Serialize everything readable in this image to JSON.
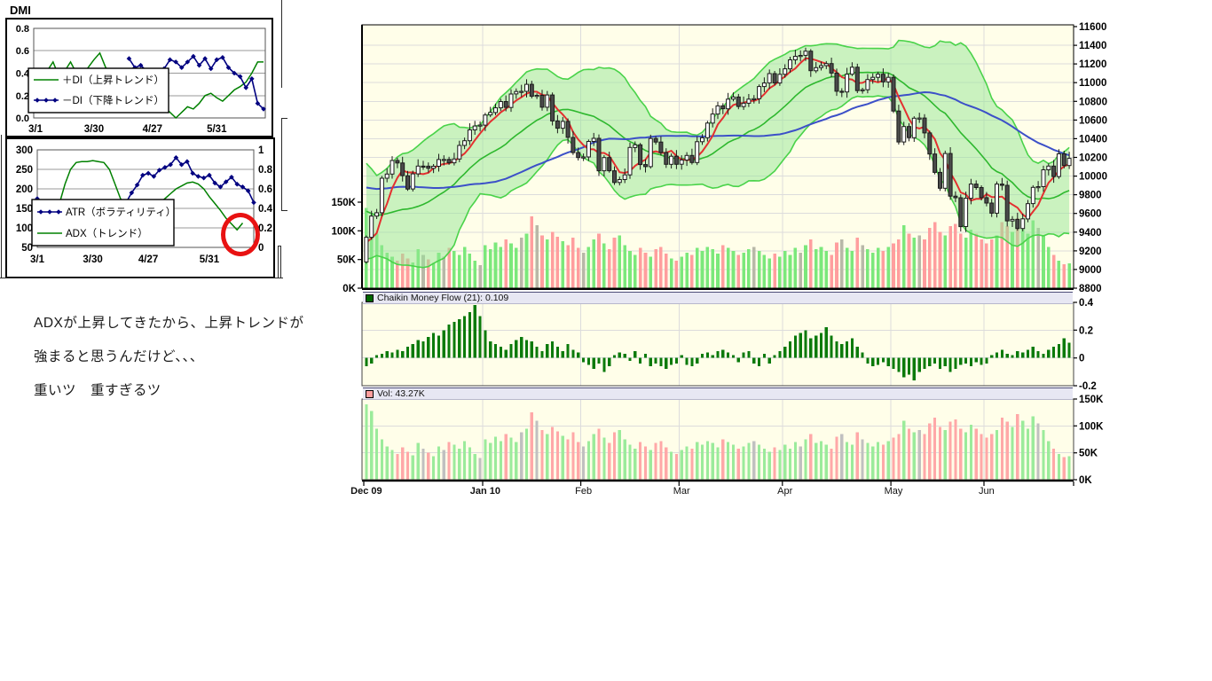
{
  "annotation": {
    "line1": "ADXが上昇してきたから、上昇トレンドが",
    "line2": "強まると思うんだけど、、、",
    "line3": "重いツ　重すぎるツ"
  },
  "dmi_panel": {
    "title": "DMI",
    "red_circle_color": "#e81212"
  },
  "chart_data": [
    {
      "id": "dmi",
      "type": "line",
      "ylim": [
        0,
        0.8
      ],
      "yticks": [
        "0.0",
        "0.2",
        "0.4",
        "0.6",
        "0.8"
      ],
      "x_tick_labels": [
        "3/1",
        "3/30",
        "4/27",
        "5/31"
      ],
      "x_tick_pos": [
        0,
        10,
        20,
        31
      ],
      "legend": [
        {
          "label": "＋DI（上昇トレンド）",
          "color": "#008000",
          "marker": "none"
        },
        {
          "label": "－DI（下降トレンド）",
          "color": "#000080",
          "marker": "diamond"
        }
      ],
      "series": [
        {
          "name": "+DI",
          "color": "#008000",
          "values": [
            null,
            0.28,
            0.42,
            0.5,
            0.37,
            0.42,
            0.5,
            0.4,
            0.38,
            0.45,
            0.52,
            0.58,
            0.45,
            0.4,
            0.33,
            0.27,
            0.25,
            0.27,
            0.2,
            0.17,
            0.15,
            0.16,
            0.1,
            0.05,
            0.0,
            0.05,
            0.1,
            0.08,
            0.13,
            0.2,
            0.22,
            0.18,
            0.15,
            0.2,
            0.25,
            0.28,
            0.32,
            0.4,
            0.5,
            0.5
          ]
        },
        {
          "name": "-DI",
          "color": "#000080",
          "marker": "diamond",
          "values": [
            null,
            null,
            null,
            null,
            null,
            null,
            null,
            null,
            null,
            null,
            null,
            null,
            null,
            null,
            null,
            null,
            0.53,
            0.45,
            0.47,
            0.42,
            0.4,
            0.38,
            0.44,
            0.52,
            0.5,
            0.45,
            0.5,
            0.55,
            0.47,
            0.53,
            0.44,
            0.52,
            0.54,
            0.45,
            0.4,
            0.37,
            0.27,
            0.35,
            0.13,
            0.08
          ]
        }
      ]
    },
    {
      "id": "atr_adx",
      "type": "line",
      "left_ylim": [
        50,
        300
      ],
      "left_yticks": [
        "300",
        "250",
        "200",
        "150",
        "100",
        "50"
      ],
      "right_ylim": [
        0,
        1
      ],
      "right_yticks": [
        "1",
        "0.8",
        "0.6",
        "0.4",
        "0.2",
        "0"
      ],
      "x_tick_labels": [
        "3/1",
        "3/30",
        "4/27",
        "5/31"
      ],
      "x_tick_pos": [
        0,
        10,
        20,
        31
      ],
      "legend": [
        {
          "label": "ATR（ボラティリティ）",
          "color": "#000080",
          "marker": "diamond"
        },
        {
          "label": "ADX（トレンド）",
          "color": "#008000",
          "marker": "none"
        }
      ],
      "series": [
        {
          "name": "ATR",
          "axis": "left",
          "color": "#000080",
          "marker": "diamond",
          "values": [
            175,
            160,
            165,
            160,
            158,
            160,
            162,
            158,
            160,
            163,
            160,
            158,
            160,
            165,
            162,
            160,
            165,
            190,
            210,
            235,
            240,
            232,
            248,
            255,
            262,
            280,
            262,
            270,
            240,
            232,
            228,
            235,
            215,
            205,
            218,
            230,
            212,
            205,
            195,
            165
          ]
        },
        {
          "name": "ADX",
          "axis": "right",
          "color": "#008000",
          "values": [
            0.22,
            0.2,
            0.18,
            0.25,
            0.45,
            0.65,
            0.8,
            0.87,
            0.88,
            0.88,
            0.89,
            0.88,
            0.87,
            0.8,
            0.65,
            0.5,
            0.43,
            0.42,
            0.44,
            0.43,
            0.42,
            0.43,
            0.45,
            0.5,
            0.55,
            0.6,
            0.63,
            0.66,
            0.67,
            0.65,
            0.6,
            0.52,
            0.45,
            0.38,
            0.3,
            0.24,
            0.18,
            0.25,
            null,
            null
          ]
        }
      ]
    },
    {
      "id": "price",
      "type": "candlestick",
      "ylim": [
        8800,
        11600
      ],
      "ytick_step": 200,
      "volume_axis_labels": [
        "150K",
        "100K",
        "50K",
        "0K"
      ],
      "months": [
        {
          "label": "Dec 09",
          "bold": true,
          "start": 0
        },
        {
          "label": "Jan 10",
          "bold": true,
          "start": 23
        },
        {
          "label": "Feb",
          "bold": false,
          "start": 42
        },
        {
          "label": "Mar",
          "bold": false,
          "start": 61
        },
        {
          "label": "Apr",
          "bold": false,
          "start": 81
        },
        {
          "label": "May",
          "bold": false,
          "start": 102
        },
        {
          "label": "Jun",
          "bold": false,
          "start": 120
        }
      ],
      "open_first": 9081,
      "pre_closes": [
        10363,
        10219,
        10257,
        10238,
        10195,
        10060,
        9891,
        10025,
        10008,
        9999,
        10044,
        10282,
        10443,
        10397,
        10333,
        10362,
        10034,
        10057,
        9802,
        9789,
        9871,
        9808,
        9732,
        9770,
        9804,
        9770,
        9675,
        9549,
        9401,
        9441,
        9522,
        9344,
        9326,
        9081,
        9346
      ],
      "closes": [
        9345,
        9572,
        9608,
        9977,
        10022,
        10167,
        10140,
        10004,
        9862,
        10023,
        10107,
        10106,
        10083,
        10105,
        10177,
        10178,
        10142,
        10183,
        10328,
        10378,
        10494,
        10536,
        10546,
        10654,
        10681,
        10731,
        10798,
        10735,
        10879,
        10905,
        10907,
        10982,
        10855,
        10864,
        10737,
        10868,
        10590,
        10512,
        10585,
        10414,
        10252,
        10198,
        10205,
        10371,
        10404,
        10057,
        10198,
        10057,
        9932,
        9963,
        10013,
        10306,
        10335,
        10123,
        10101,
        10402,
        10364,
        10252,
        10126,
        10212,
        10126,
        10172,
        10221,
        10145,
        10368,
        10410,
        10567,
        10664,
        10751,
        10721,
        10824,
        10846,
        10744,
        10780,
        10824,
        10828,
        10958,
        10996,
        11097,
        10996,
        11089,
        11148,
        11244,
        11282,
        11292,
        11337,
        11128,
        11161,
        11182,
        11204,
        11102,
        10908,
        10900,
        11090,
        11165,
        10914,
        10924,
        11033,
        11057,
        11090,
        11008,
        11057,
        10696,
        10365,
        10530,
        10411,
        10620,
        10621,
        10462,
        10236,
        10040,
        9870,
        10242,
        9785,
        9768,
        9459,
        9762,
        9914,
        9877,
        9769,
        9711,
        9603,
        9914,
        9901,
        9520,
        9537,
        9439,
        9542,
        9705,
        9879,
        9887,
        10067,
        10107,
        9995,
        10238,
        10113,
        10190
      ],
      "volumes": [
        140,
        128,
        95,
        75,
        62,
        55,
        48,
        60,
        52,
        45,
        68,
        58,
        50,
        44,
        62,
        55,
        70,
        65,
        58,
        72,
        60,
        48,
        40,
        75,
        68,
        80,
        72,
        85,
        78,
        70,
        88,
        95,
        125,
        110,
        92,
        85,
        98,
        90,
        82,
        75,
        88,
        70,
        62,
        72,
        85,
        95,
        78,
        68,
        88,
        92,
        75,
        65,
        58,
        70,
        62,
        55,
        68,
        72,
        60,
        52,
        48,
        55,
        62,
        58,
        70,
        65,
        72,
        68,
        60,
        75,
        70,
        65,
        58,
        62,
        68,
        72,
        65,
        58,
        52,
        60,
        55,
        65,
        58,
        70,
        62,
        75,
        85,
        68,
        72,
        65,
        58,
        80,
        85,
        70,
        65,
        88,
        75,
        68,
        62,
        70,
        65,
        72,
        78,
        85,
        110,
        95,
        88,
        92,
        85,
        105,
        115,
        98,
        92,
        108,
        112,
        95,
        88,
        102,
        95,
        85,
        78,
        85,
        92,
        115,
        108,
        98,
        122,
        110,
        95,
        118,
        105,
        92,
        72,
        58,
        48,
        42,
        43.27
      ],
      "colors": {
        "bg": "#fffee9",
        "band_fill": "#96e696",
        "band_line": "#4ad34a",
        "mid_line": "#2eb82e",
        "ma_fast": "#e43030",
        "ma_slow": "#3c50c8",
        "up_candle": "#ffffff",
        "down_candle": "#4a4a4a",
        "grid": "#dcdcdc",
        "vol_up": "#7be87b",
        "vol_down": "#ff9e9e",
        "vol_flat": "#b8b8a8"
      }
    },
    {
      "id": "cmf",
      "type": "bar",
      "header": "Chaikin Money Flow (21): 0.109",
      "last_value": 0.109,
      "icon_color": "#006600",
      "bar_color": "#0b7a0b",
      "ylim": [
        -0.2,
        0.4
      ],
      "yticks": [
        "0.4",
        "0.2",
        "0",
        "-0.2"
      ],
      "ytick_values": [
        0.4,
        0.2,
        0,
        -0.2
      ],
      "values": [
        -0.06,
        -0.04,
        0.02,
        0.03,
        0.05,
        0.04,
        0.06,
        0.05,
        0.08,
        0.1,
        0.13,
        0.12,
        0.15,
        0.18,
        0.16,
        0.2,
        0.24,
        0.26,
        0.28,
        0.3,
        0.33,
        0.38,
        0.3,
        0.2,
        0.12,
        0.1,
        0.08,
        0.06,
        0.1,
        0.13,
        0.15,
        0.13,
        0.12,
        0.08,
        0.05,
        0.1,
        0.12,
        0.08,
        0.05,
        0.1,
        0.06,
        0.04,
        -0.03,
        -0.05,
        -0.08,
        -0.04,
        -0.1,
        -0.06,
        0.02,
        0.04,
        0.03,
        -0.02,
        0.05,
        -0.04,
        0.03,
        -0.06,
        -0.04,
        -0.06,
        -0.08,
        -0.05,
        -0.04,
        0.02,
        -0.05,
        -0.06,
        -0.04,
        0.03,
        0.04,
        0.02,
        0.05,
        0.06,
        0.04,
        0.02,
        -0.03,
        0.04,
        0.05,
        -0.04,
        -0.06,
        0.03,
        -0.04,
        0.02,
        0.05,
        0.08,
        0.12,
        0.16,
        0.18,
        0.2,
        0.14,
        0.16,
        0.18,
        0.22,
        0.16,
        0.12,
        0.1,
        0.12,
        0.14,
        0.08,
        0.04,
        -0.04,
        -0.06,
        -0.05,
        -0.03,
        -0.06,
        -0.08,
        -0.1,
        -0.14,
        -0.12,
        -0.16,
        -0.1,
        -0.08,
        -0.06,
        -0.04,
        -0.08,
        -0.06,
        -0.1,
        -0.08,
        -0.05,
        -0.04,
        -0.06,
        -0.03,
        -0.05,
        -0.04,
        0.02,
        0.04,
        0.06,
        0.03,
        0.02,
        0.05,
        0.04,
        0.06,
        0.08,
        0.05,
        0.03,
        0.06,
        0.08,
        0.1,
        0.14,
        0.109
      ]
    },
    {
      "id": "vol",
      "type": "bar",
      "header": "Vol: 43.27K",
      "last_value": "43.27K",
      "icon_color": "#ff9e9e",
      "ylim": [
        0,
        150
      ],
      "yticks": [
        "150K",
        "100K",
        "50K",
        "0K"
      ],
      "ytick_values": [
        150,
        100,
        50,
        0
      ],
      "note": "values shared with price panel volumes"
    }
  ]
}
